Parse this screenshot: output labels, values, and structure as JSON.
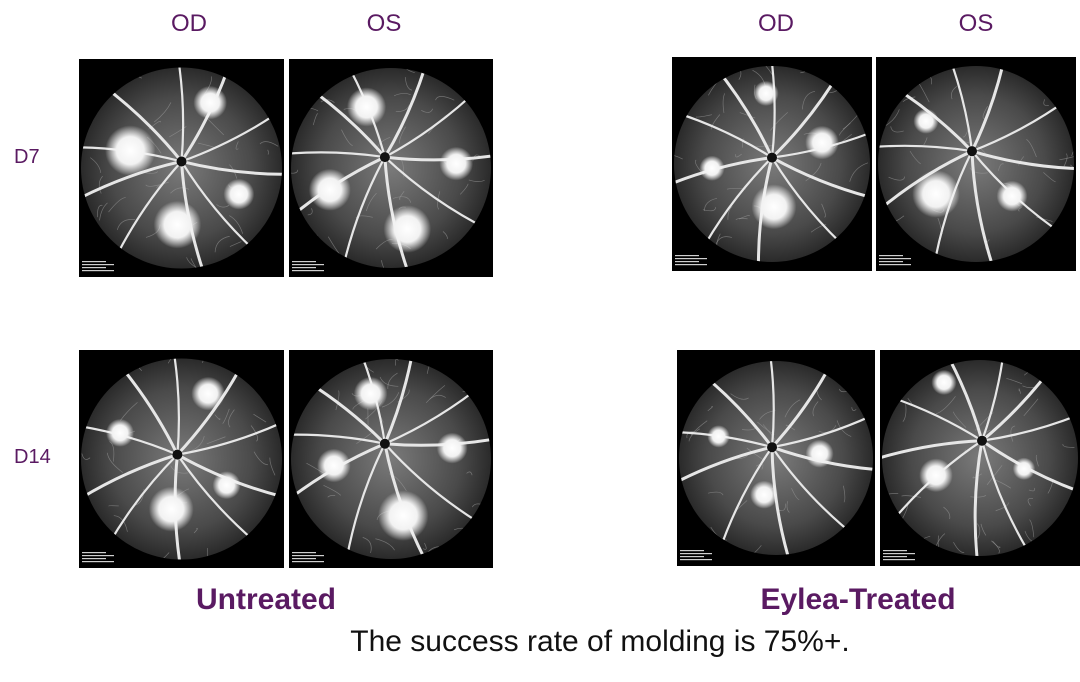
{
  "columns": {
    "left_od": "OD",
    "left_os": "OS",
    "right_od": "OD",
    "right_os": "OS"
  },
  "rows": {
    "d7": "D7",
    "d14": "D14"
  },
  "groups": {
    "untreated": "Untreated",
    "treated": "Eylea-Treated"
  },
  "caption": "The success rate of molding is 75%+.",
  "colors": {
    "label_purple": "#5a1a62",
    "caption_black": "#111111",
    "image_background": "#000000"
  }
}
